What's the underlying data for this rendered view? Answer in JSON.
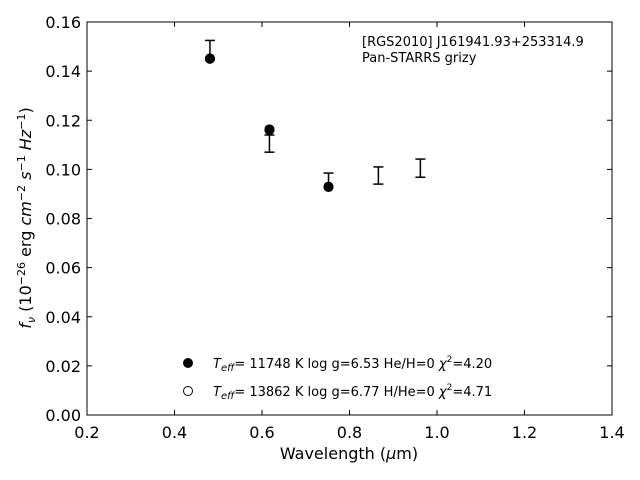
{
  "chart_data": {
    "type": "scatter",
    "title": "",
    "xlabel": "Wavelength (μm)",
    "ylabel": "f_ν (10^-26 erg cm^-2 s^-1 Hz^-1)",
    "xlim": [
      0.2,
      1.4
    ],
    "ylim": [
      0.0,
      0.16
    ],
    "xticks": [
      "0.2",
      "0.4",
      "0.6",
      "0.8",
      "1.0",
      "1.2",
      "1.4"
    ],
    "yticks": [
      "0.00",
      "0.02",
      "0.04",
      "0.06",
      "0.08",
      "0.10",
      "0.12",
      "0.14",
      "0.16"
    ],
    "grid": false,
    "annotation": {
      "line1": "[RGS2010] J161941.93+253314.9",
      "line2": "Pan-STARRS grizy"
    },
    "observed": {
      "x": [
        0.481,
        0.617,
        0.752,
        0.866,
        0.962
      ],
      "y": [
        0.1485,
        0.1105,
        0.0955,
        0.0975,
        0.1005
      ],
      "yerr": [
        0.004,
        0.0035,
        0.003,
        0.0035,
        0.0037
      ]
    },
    "series": [
      {
        "name": "T_eff= 11748 K  log g=6.53  He/H=0  χ²=4.20",
        "marker": "filled-circle",
        "x": [
          0.481,
          0.617,
          0.752
        ],
        "y": [
          0.1452,
          0.1163,
          0.0928
        ]
      },
      {
        "name": "T_eff= 13862 K  log g=6.77  H/He=0  χ²=4.71",
        "marker": "open-circle",
        "x": [
          0.481,
          0.617,
          0.752
        ],
        "y": [
          0.145,
          0.116,
          0.093
        ]
      }
    ],
    "legend": {
      "placement": "lower-center",
      "entries": [
        {
          "teff_label": "T",
          "teff_sub": "eff",
          "rest_prefix": "= 11748 K  log g=6.53  He/H=0  ",
          "chi": "χ",
          "chi_sup": "2",
          "chi_val": "=4.20"
        },
        {
          "teff_label": "T",
          "teff_sub": "eff",
          "rest_prefix": "= 13862 K  log g=6.77  H/He=0  ",
          "chi": "χ",
          "chi_sup": "2",
          "chi_val": "=4.71"
        }
      ]
    }
  },
  "colors": {
    "marker": "#000000",
    "axis": "#000000",
    "background": "#ffffff"
  }
}
